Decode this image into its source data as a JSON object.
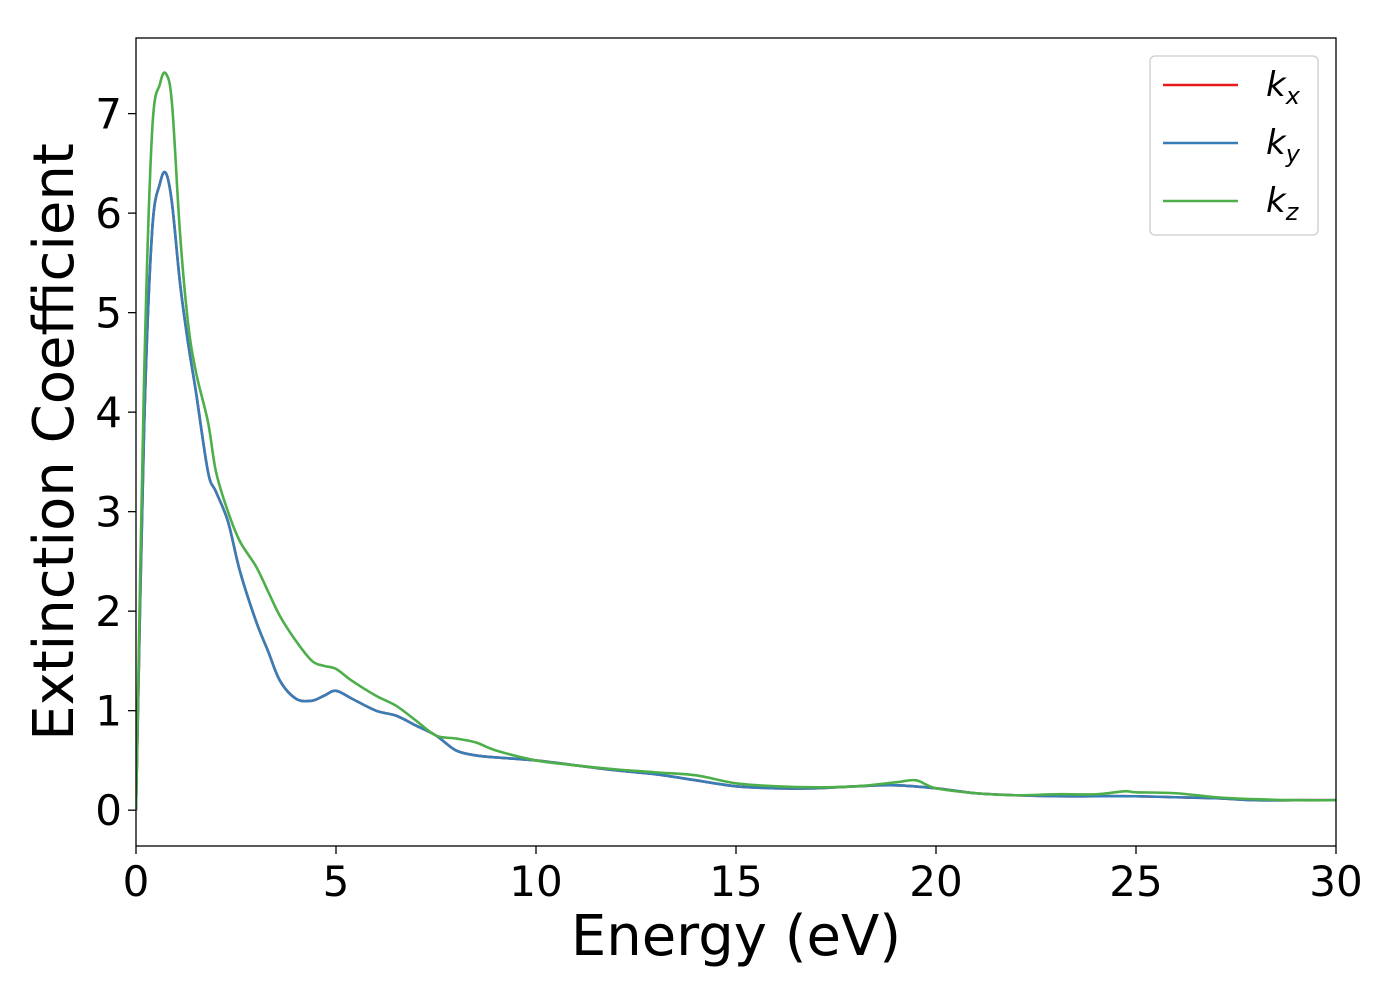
{
  "chart_data": {
    "type": "line",
    "title": "",
    "xlabel": "Energy (eV)",
    "ylabel": "Extinction Coefficient",
    "xlim": [
      0,
      30
    ],
    "ylim": [
      -0.36,
      7.76
    ],
    "xticks": [
      0,
      5,
      10,
      15,
      20,
      25,
      30
    ],
    "yticks": [
      0,
      1,
      2,
      3,
      4,
      5,
      6,
      7
    ],
    "grid": false,
    "legend_position": "top-right",
    "series": [
      {
        "name": "k_x",
        "label_base": "k",
        "label_sub": "x",
        "color": "#e41a1c",
        "x": [
          0,
          0.2,
          0.4,
          0.6,
          0.75,
          0.9,
          1.1,
          1.3,
          1.5,
          1.8,
          2.0,
          2.3,
          2.6,
          3.0,
          3.3,
          3.6,
          4.0,
          4.4,
          4.7,
          5.0,
          5.4,
          6.0,
          6.5,
          7.0,
          7.5,
          8.0,
          8.5,
          9.0,
          10,
          11,
          12,
          13,
          14,
          15,
          16,
          17,
          18,
          19,
          20,
          21,
          22,
          23,
          24,
          25,
          26,
          27,
          28,
          29,
          30
        ],
        "values": [
          0,
          3.8,
          5.8,
          6.3,
          6.4,
          6.1,
          5.3,
          4.7,
          4.2,
          3.4,
          3.2,
          2.9,
          2.4,
          1.9,
          1.6,
          1.3,
          1.12,
          1.1,
          1.15,
          1.2,
          1.12,
          1.0,
          0.95,
          0.85,
          0.75,
          0.6,
          0.55,
          0.53,
          0.5,
          0.45,
          0.4,
          0.36,
          0.3,
          0.24,
          0.22,
          0.22,
          0.24,
          0.25,
          0.22,
          0.17,
          0.15,
          0.14,
          0.14,
          0.14,
          0.13,
          0.12,
          0.1,
          0.1,
          0.1
        ]
      },
      {
        "name": "k_y",
        "label_base": "k",
        "label_sub": "y",
        "color": "#377eb8",
        "x": [
          0,
          0.2,
          0.4,
          0.6,
          0.75,
          0.9,
          1.1,
          1.3,
          1.5,
          1.8,
          2.0,
          2.3,
          2.6,
          3.0,
          3.3,
          3.6,
          4.0,
          4.4,
          4.7,
          5.0,
          5.4,
          6.0,
          6.5,
          7.0,
          7.5,
          8.0,
          8.5,
          9.0,
          10,
          11,
          12,
          13,
          14,
          15,
          16,
          17,
          18,
          19,
          20,
          21,
          22,
          23,
          24,
          25,
          26,
          27,
          28,
          29,
          30
        ],
        "values": [
          0,
          3.8,
          5.8,
          6.3,
          6.4,
          6.1,
          5.3,
          4.7,
          4.2,
          3.4,
          3.2,
          2.9,
          2.4,
          1.9,
          1.6,
          1.3,
          1.12,
          1.1,
          1.15,
          1.2,
          1.12,
          1.0,
          0.95,
          0.85,
          0.75,
          0.6,
          0.55,
          0.53,
          0.5,
          0.45,
          0.4,
          0.36,
          0.3,
          0.24,
          0.22,
          0.22,
          0.24,
          0.25,
          0.22,
          0.17,
          0.15,
          0.14,
          0.14,
          0.14,
          0.13,
          0.12,
          0.1,
          0.1,
          0.1
        ]
      },
      {
        "name": "k_z",
        "label_base": "k",
        "label_sub": "z",
        "color": "#4daf4a",
        "x": [
          0,
          0.2,
          0.4,
          0.6,
          0.75,
          0.9,
          1.1,
          1.3,
          1.5,
          1.8,
          2.0,
          2.3,
          2.6,
          3.0,
          3.3,
          3.6,
          4.0,
          4.4,
          4.7,
          5.0,
          5.4,
          6.0,
          6.5,
          7.0,
          7.5,
          8.0,
          8.5,
          9.0,
          10,
          11,
          12,
          13,
          14,
          15,
          16,
          17,
          18,
          19,
          19.5,
          20,
          21,
          22,
          23,
          24,
          24.7,
          25,
          26,
          27,
          28,
          29,
          30
        ],
        "values": [
          0,
          4.3,
          6.8,
          7.3,
          7.4,
          7.1,
          5.8,
          4.9,
          4.4,
          3.9,
          3.4,
          3.0,
          2.7,
          2.45,
          2.2,
          1.95,
          1.7,
          1.5,
          1.45,
          1.42,
          1.3,
          1.15,
          1.05,
          0.9,
          0.75,
          0.72,
          0.68,
          0.6,
          0.5,
          0.45,
          0.41,
          0.38,
          0.35,
          0.27,
          0.24,
          0.23,
          0.24,
          0.28,
          0.3,
          0.22,
          0.17,
          0.15,
          0.16,
          0.16,
          0.19,
          0.18,
          0.17,
          0.13,
          0.11,
          0.1,
          0.1
        ]
      }
    ]
  }
}
